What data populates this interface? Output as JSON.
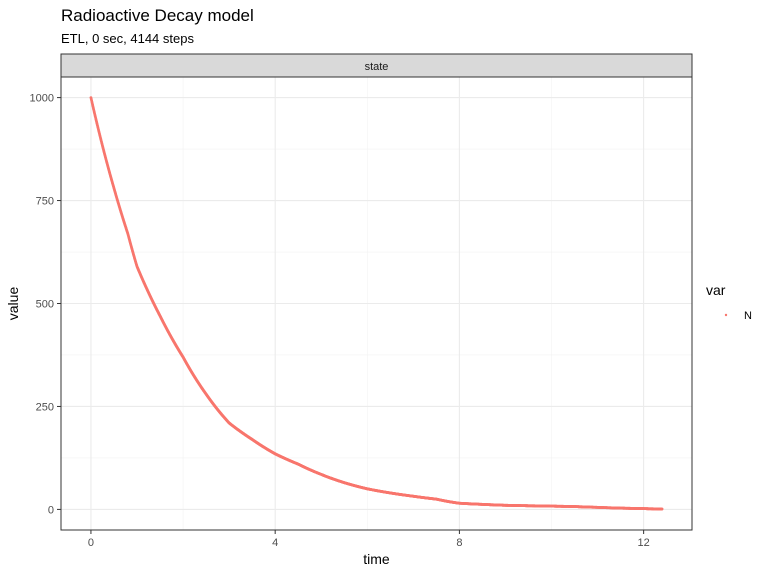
{
  "chart_data": {
    "type": "scatter",
    "title": "Radioactive Decay model",
    "subtitle": "ETL, 0 sec, 4144 steps",
    "facet_label": "state",
    "xlabel": "time",
    "ylabel": "value",
    "xlim": [
      -0.65,
      13.05
    ],
    "ylim": [
      -50,
      1050
    ],
    "x_ticks": [
      0,
      4,
      8,
      12
    ],
    "y_ticks": [
      0,
      250,
      500,
      750,
      1000
    ],
    "x_tick_labels": [
      "0",
      "4",
      "8",
      "12"
    ],
    "y_tick_labels": [
      "0",
      "250",
      "500",
      "750",
      "1000"
    ],
    "grid": true,
    "legend": {
      "title": "var",
      "position": "right",
      "entries": [
        "N"
      ]
    },
    "series": [
      {
        "name": "N",
        "color": "#F8766D",
        "x": [
          0,
          0.5,
          0.8,
          1.0,
          1.5,
          2.0,
          2.5,
          3.0,
          3.5,
          4.0,
          4.5,
          5.0,
          5.5,
          6.0,
          6.5,
          7.0,
          7.5,
          8.0,
          9.0,
          10.0,
          10.5,
          11.0,
          12.0,
          12.4
        ],
        "y": [
          1000,
          780,
          670,
          590,
          470,
          370,
          280,
          210,
          170,
          135,
          110,
          85,
          65,
          50,
          40,
          32,
          25,
          15,
          10,
          8,
          7,
          5,
          2,
          1
        ]
      }
    ]
  }
}
